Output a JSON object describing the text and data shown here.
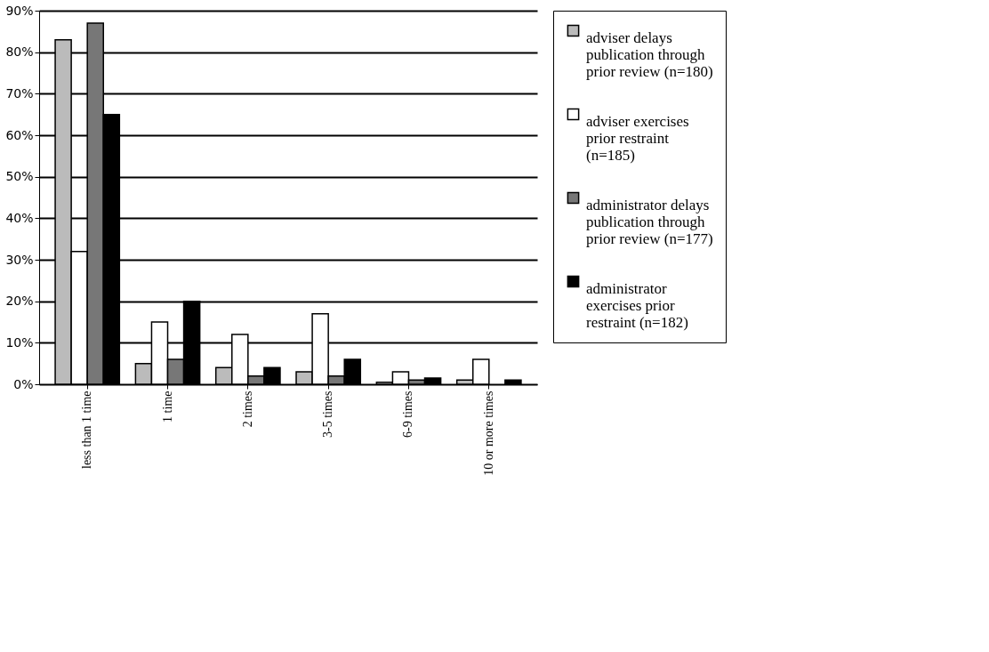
{
  "chart_data": {
    "type": "bar",
    "categories": [
      "less than 1 time",
      "1 time",
      "2 times",
      "3-5 times",
      "6-9 times",
      "10 or more times"
    ],
    "series": [
      {
        "name": "adviser delays publication through prior review (n=180)",
        "color": "#bbbbbb",
        "values": [
          83,
          5,
          4,
          3,
          0.5,
          1
        ]
      },
      {
        "name": "adviser exercises prior restraint (n=185)",
        "color": "#ffffff",
        "values": [
          32,
          15,
          12,
          17,
          3,
          6
        ]
      },
      {
        "name": "administrator delays publication through prior review (n=177)",
        "color": "#777777",
        "values": [
          87,
          6,
          2,
          2,
          1,
          0
        ]
      },
      {
        "name": "administrator exercises prior restraint (n=182)",
        "color": "#000000",
        "values": [
          65,
          20,
          4,
          6,
          1.5,
          1
        ]
      }
    ],
    "ylim": [
      0,
      90
    ],
    "yticks": [
      {
        "value": 0,
        "label": "0%"
      },
      {
        "value": 10,
        "label": "10%"
      },
      {
        "value": 20,
        "label": "20%"
      },
      {
        "value": 30,
        "label": "30%"
      },
      {
        "value": 40,
        "label": "40%"
      },
      {
        "value": 50,
        "label": "50%"
      },
      {
        "value": 60,
        "label": "60%"
      },
      {
        "value": 70,
        "label": "70%"
      },
      {
        "value": 80,
        "label": "80%"
      },
      {
        "value": 90,
        "label": "90%"
      }
    ],
    "grid": "y",
    "legend": "right"
  }
}
